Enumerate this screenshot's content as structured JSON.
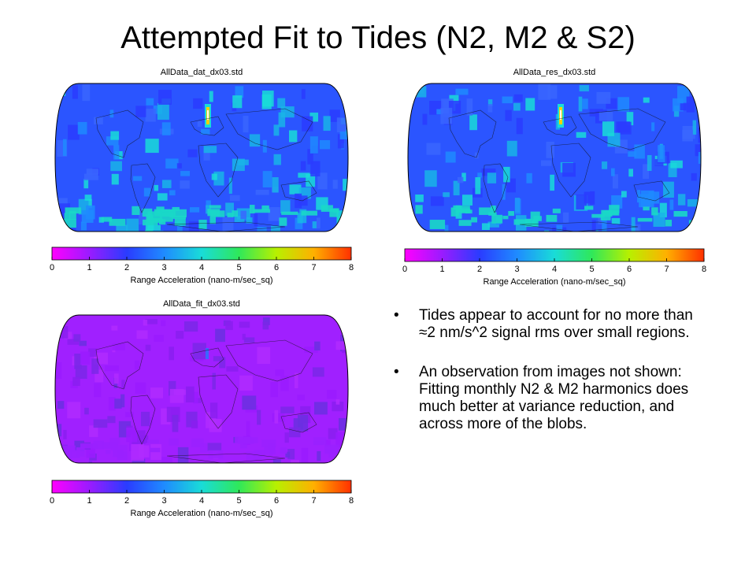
{
  "slide": {
    "title": "Attempted Fit to Tides (N2, M2 & S2)"
  },
  "panels": [
    {
      "title": "AllData_dat_dx03.std",
      "palette": "dat"
    },
    {
      "title": "AllData_res_dx03.std",
      "palette": "res"
    },
    {
      "title": "AllData_fit_dx03.std",
      "palette": "fit"
    }
  ],
  "colorbar": {
    "ticks": [
      "0",
      "1",
      "2",
      "3",
      "4",
      "5",
      "6",
      "7",
      "8"
    ],
    "label": "Range Acceleration (nano-m/sec_sq)",
    "stops": [
      "#ff00ff",
      "#9a1bff",
      "#2a3cff",
      "#1f8bff",
      "#19dcd8",
      "#2fe85a",
      "#b8f000",
      "#ffb000",
      "#ff3000"
    ]
  },
  "bullets": [
    "Tides appear to account for no more than ≈2 nm/s^2 signal rms over small regions.",
    "An observation from images not shown: Fitting monthly N2 & M2 harmonics does much better at variance reduction, and across more of the blobs."
  ],
  "bullet_glyph": "•"
}
